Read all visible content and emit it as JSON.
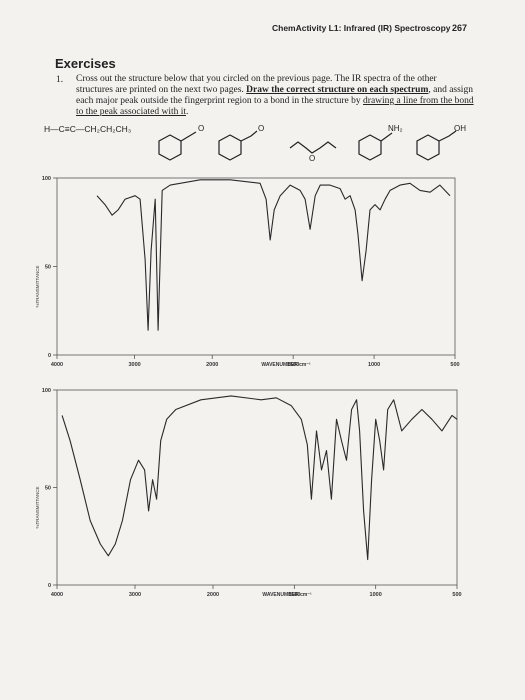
{
  "header": {
    "chapter": "ChemActivity L1: Infrared (IR) Spectroscopy",
    "page": "267"
  },
  "exercises": {
    "title": "Exercises",
    "number": "1.",
    "text": [
      "Cross out the structure below that you circled on the previous page. The IR spectra of the other structures are printed on the next two pages. ",
      "Draw the correct structure on each spectrum",
      ", and assign each major peak outside the fingerprint region to a bond in the structure by ",
      "drawing a line from the bond to the peak associated with it",
      "."
    ]
  },
  "structures": [
    "H—C≡C—CH₂CH₂CH₃",
    "O",
    "O",
    "O",
    "NH₂",
    "OH"
  ],
  "chart_data": [
    {
      "type": "line",
      "x_label": "WAVENUMBER cm⁻¹",
      "y_label": "%TRANSMITTANCE",
      "xlim": [
        4000,
        500
      ],
      "ylim": [
        0,
        100
      ],
      "xticks": [
        4000,
        3000,
        2000,
        1500,
        1000,
        500
      ],
      "yticks": [
        0,
        50,
        100
      ],
      "x": [
        3484,
        3381,
        3290,
        3213,
        3123,
        2994,
        2929,
        2865,
        2826,
        2787,
        2735,
        2697,
        2645,
        2542,
        2155,
        1889,
        1704,
        1667,
        1642,
        1617,
        1580,
        1519,
        1457,
        1426,
        1395,
        1364,
        1333,
        1272,
        1210,
        1179,
        1148,
        1117,
        1099,
        1074,
        1049,
        1025,
        994,
        963,
        932,
        901,
        840,
        778,
        716,
        654,
        593,
        531
      ],
      "series": [
        {
          "color": "#2a2a2a",
          "values": [
            90,
            85,
            79,
            82,
            88,
            90,
            88,
            54,
            14,
            59,
            88,
            14,
            93,
            96,
            99,
            99,
            97,
            88,
            65,
            82,
            90,
            96,
            93,
            88,
            71,
            90,
            96,
            96,
            94,
            88,
            90,
            82,
            68,
            42,
            59,
            82,
            85,
            82,
            88,
            93,
            96,
            97,
            93,
            92,
            96,
            90
          ]
        }
      ]
    },
    {
      "type": "line",
      "x_label": "WAVENUMBER cm⁻¹",
      "y_label": "%TRANSMITTANCE",
      "xlim": [
        4000,
        500
      ],
      "ylim": [
        0,
        100
      ],
      "xticks": [
        4000,
        3000,
        2000,
        1500,
        1000,
        500
      ],
      "yticks": [
        0,
        50,
        100
      ],
      "x": [
        3935,
        3832,
        3703,
        3574,
        3445,
        3342,
        3252,
        3161,
        3058,
        2955,
        2877,
        2826,
        2774,
        2723,
        2671,
        2594,
        2477,
        2155,
        1889,
        1704,
        1611,
        1519,
        1457,
        1420,
        1395,
        1364,
        1333,
        1302,
        1272,
        1241,
        1210,
        1179,
        1148,
        1117,
        1099,
        1074,
        1049,
        1025,
        1000,
        975,
        951,
        926,
        889,
        840,
        778,
        716,
        654,
        593,
        531,
        500
      ],
      "series": [
        {
          "color": "#2a2a2a",
          "values": [
            87,
            74,
            54,
            33,
            21,
            15,
            21,
            33,
            54,
            64,
            59,
            38,
            54,
            44,
            74,
            85,
            90,
            95,
            97,
            95,
            96,
            92,
            85,
            72,
            44,
            79,
            59,
            69,
            44,
            85,
            74,
            64,
            90,
            95,
            79,
            38,
            13,
            54,
            85,
            74,
            59,
            90,
            95,
            79,
            85,
            90,
            85,
            79,
            87,
            85
          ]
        }
      ]
    }
  ]
}
